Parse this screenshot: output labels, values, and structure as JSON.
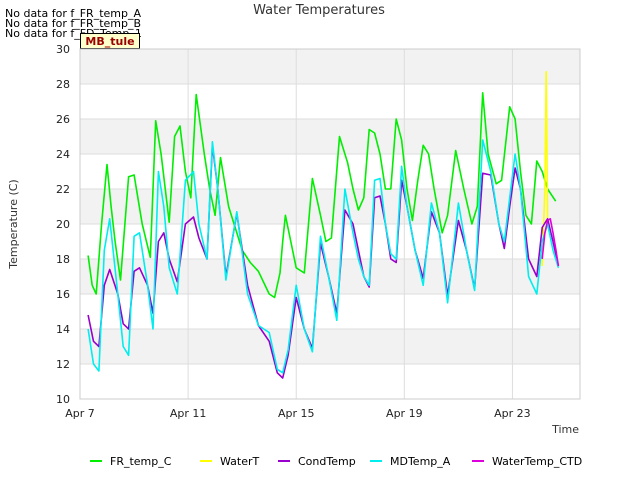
{
  "no_data_messages": [
    "No data for f_FR_temp_A",
    "No data for f_FR_temp_B",
    "No data for f_FD_Temp_1"
  ],
  "badge": "MB_tule",
  "chart_data": {
    "type": "line",
    "title": "Water Temperatures",
    "xlabel": "Time",
    "ylabel": "Temperature (C)",
    "ylim": [
      10,
      30
    ],
    "yticks": [
      10,
      12,
      14,
      16,
      18,
      20,
      22,
      24,
      26,
      28,
      30
    ],
    "x_range_day": [
      7,
      25.5
    ],
    "xticks": [
      {
        "day": 7,
        "label": "Apr 7"
      },
      {
        "day": 11,
        "label": "Apr 11"
      },
      {
        "day": 15,
        "label": "Apr 15"
      },
      {
        "day": 19,
        "label": "Apr 19"
      },
      {
        "day": 23,
        "label": "Apr 23"
      }
    ],
    "x_unit": "day of April",
    "grid": true,
    "legend_position": "bottom",
    "series": [
      {
        "name": "FR_temp_C",
        "color": "#00ee00",
        "x": [
          7.3,
          7.45,
          7.6,
          7.8,
          8.0,
          8.15,
          8.3,
          8.5,
          8.8,
          9.0,
          9.3,
          9.6,
          9.8,
          10.0,
          10.3,
          10.5,
          10.7,
          10.9,
          11.1,
          11.3,
          11.6,
          11.8,
          12.0,
          12.2,
          12.5,
          12.8,
          13.0,
          13.3,
          13.6,
          14.0,
          14.2,
          14.4,
          14.5,
          14.6,
          14.8,
          15.0,
          15.3,
          15.6,
          15.9,
          16.1,
          16.3,
          16.6,
          16.9,
          17.1,
          17.3,
          17.5,
          17.7,
          17.9,
          18.1,
          18.3,
          18.5,
          18.7,
          18.9,
          19.1,
          19.3,
          19.5,
          19.7,
          19.9,
          20.1,
          20.4,
          20.6,
          20.9,
          21.2,
          21.5,
          21.7,
          21.9,
          22.1,
          22.4,
          22.6,
          22.9,
          23.1,
          23.3,
          23.5,
          23.7,
          23.9,
          24.1,
          24.3,
          24.6
        ],
        "y": [
          18.2,
          16.5,
          16.0,
          20.0,
          23.4,
          21.0,
          19.0,
          16.8,
          22.7,
          22.8,
          20.0,
          18.1,
          25.9,
          24.0,
          20.1,
          25.0,
          25.6,
          23.0,
          21.5,
          27.4,
          24.0,
          22.0,
          20.5,
          23.8,
          21.0,
          19.5,
          18.5,
          17.8,
          17.3,
          16.0,
          15.8,
          17.2,
          19.0,
          20.5,
          19.0,
          17.5,
          17.2,
          22.6,
          20.5,
          19.0,
          19.2,
          25.0,
          23.5,
          22.0,
          20.8,
          21.5,
          25.4,
          25.2,
          24.0,
          22.0,
          22.0,
          26.0,
          24.8,
          22.0,
          20.2,
          22.5,
          24.5,
          24.0,
          22.0,
          19.5,
          20.5,
          24.2,
          22.0,
          20.0,
          21.0,
          27.5,
          24.0,
          22.3,
          22.5,
          26.7,
          26.0,
          23.0,
          20.5,
          20.0,
          23.6,
          23.0,
          22.0,
          21.3
        ]
      },
      {
        "name": "WaterT",
        "color": "#ffff00",
        "x": [
          24.1,
          24.2,
          24.25,
          24.3,
          24.4
        ],
        "y": [
          17.6,
          22.0,
          28.7,
          20.0,
          19.5
        ]
      },
      {
        "name": "CondTemp",
        "color": "#9900cc",
        "x": [
          7.3,
          7.5,
          7.7,
          7.9,
          8.1,
          8.4,
          8.6,
          8.8,
          9.0,
          9.2,
          9.5,
          9.7,
          9.9,
          10.1,
          10.3,
          10.6,
          10.9,
          11.2,
          11.4,
          11.7,
          11.9,
          12.1,
          12.4,
          12.8,
          13.2,
          13.6,
          14.0,
          14.3,
          14.5,
          14.7,
          15.0,
          15.3,
          15.6,
          15.9,
          16.2,
          16.5,
          16.8,
          17.1,
          17.3,
          17.5,
          17.7,
          17.9,
          18.1,
          18.3,
          18.5,
          18.7,
          18.9,
          19.1,
          19.4,
          19.7,
          20.0,
          20.3,
          20.6,
          21.0,
          21.3,
          21.6,
          21.9,
          22.2,
          22.5,
          22.7,
          22.9,
          23.1,
          23.3,
          23.6,
          23.9,
          24.1,
          24.3,
          24.5,
          24.7
        ],
        "y": [
          14.8,
          13.3,
          13.0,
          16.5,
          17.4,
          16.0,
          14.3,
          14.0,
          17.3,
          17.5,
          16.5,
          14.9,
          19.0,
          19.5,
          18.0,
          16.7,
          20.0,
          20.4,
          19.2,
          18.0,
          24.5,
          22.0,
          17.0,
          20.6,
          16.5,
          14.2,
          13.3,
          11.5,
          11.2,
          12.5,
          15.8,
          14.0,
          12.9,
          18.9,
          17.0,
          14.9,
          20.8,
          20.0,
          18.5,
          17.0,
          16.4,
          21.5,
          21.6,
          20.0,
          18.0,
          17.8,
          22.5,
          21.0,
          18.5,
          16.9,
          20.7,
          19.5,
          15.9,
          20.2,
          18.5,
          16.3,
          22.9,
          22.8,
          20.0,
          18.6,
          21.0,
          23.2,
          22.0,
          18.0,
          17.0,
          19.8,
          20.3,
          19.0,
          17.6
        ]
      },
      {
        "name": "MDTemp_A",
        "color": "#00eeee",
        "x": [
          7.3,
          7.5,
          7.7,
          7.9,
          8.1,
          8.4,
          8.6,
          8.8,
          9.0,
          9.2,
          9.5,
          9.7,
          9.9,
          10.1,
          10.3,
          10.6,
          10.9,
          11.2,
          11.4,
          11.7,
          11.9,
          12.1,
          12.4,
          12.8,
          13.2,
          13.6,
          14.0,
          14.3,
          14.5,
          14.7,
          15.0,
          15.3,
          15.6,
          15.9,
          16.2,
          16.5,
          16.8,
          17.1,
          17.3,
          17.5,
          17.7,
          17.9,
          18.1,
          18.3,
          18.5,
          18.7,
          18.9,
          19.1,
          19.4,
          19.7,
          20.0,
          20.3,
          20.6,
          21.0,
          21.3,
          21.6,
          21.9,
          22.2,
          22.5,
          22.7,
          22.9,
          23.1,
          23.3,
          23.6,
          23.9,
          24.1,
          24.3,
          24.5,
          24.7
        ],
        "y": [
          14.0,
          12.0,
          11.6,
          18.5,
          20.3,
          16.0,
          13.0,
          12.5,
          19.3,
          19.5,
          16.5,
          14.0,
          23.0,
          21.0,
          17.5,
          16.0,
          22.5,
          23.0,
          20.0,
          18.0,
          24.7,
          22.0,
          16.8,
          20.7,
          16.0,
          14.2,
          13.8,
          11.7,
          11.5,
          12.8,
          16.5,
          14.0,
          12.7,
          19.3,
          17.0,
          14.5,
          22.0,
          19.5,
          18.0,
          17.0,
          16.5,
          22.5,
          22.6,
          20.0,
          18.3,
          18.0,
          23.3,
          21.0,
          18.5,
          16.5,
          21.2,
          19.5,
          15.5,
          21.2,
          18.5,
          16.2,
          24.8,
          23.0,
          20.0,
          19.0,
          21.5,
          24.0,
          22.0,
          17.0,
          16.0,
          19.0,
          20.0,
          18.5,
          17.5
        ]
      },
      {
        "name": "WaterTemp_CTD",
        "color": "#dd00dd",
        "x": [
          24.1,
          24.2,
          24.3,
          24.4,
          24.5,
          24.6,
          24.7
        ],
        "y": [
          18.0,
          19.5,
          20.2,
          20.3,
          19.5,
          18.6,
          17.6
        ]
      }
    ]
  }
}
